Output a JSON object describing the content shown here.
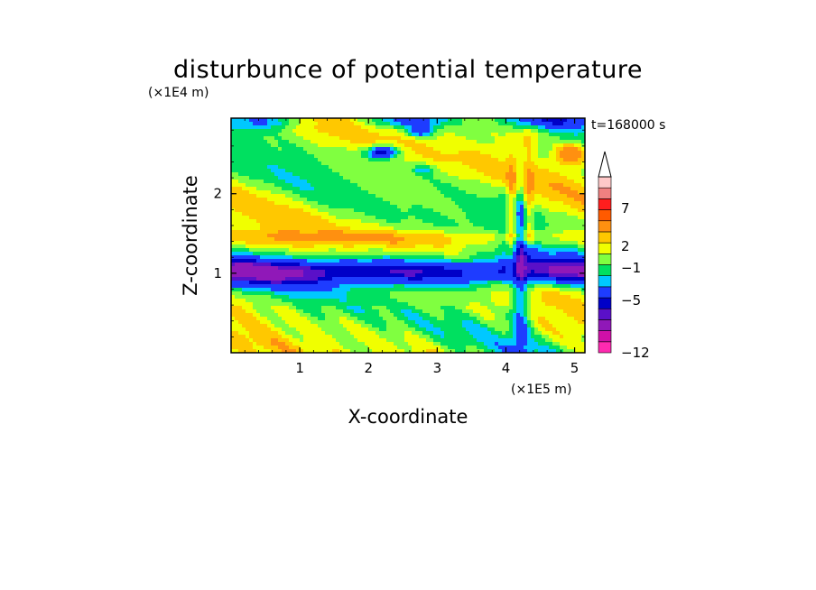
{
  "chart_data": {
    "type": "heatmap",
    "title": "disturbunce of potential temperature",
    "xlabel": "X-coordinate",
    "ylabel": "Z-coordinate",
    "x_unit": "(×1E5 m)",
    "y_unit": "(×1E4 m)",
    "time_label": "t=168000 s",
    "xlim": [
      0,
      5.15
    ],
    "ylim": [
      0,
      2.95
    ],
    "x_ticks": [
      1,
      2,
      3,
      4,
      5
    ],
    "y_ticks": [
      1,
      2
    ],
    "colorbar": {
      "tick_values": [
        7,
        2,
        -1,
        -5,
        -12
      ],
      "levels": [
        -12,
        -10,
        -8,
        -6,
        -5,
        -4,
        -2,
        -1,
        0,
        1,
        2,
        3,
        5,
        7,
        9,
        11
      ],
      "colors": [
        "#ff2ab0",
        "#d010a8",
        "#9018b8",
        "#5a10c8",
        "#0000c8",
        "#1e3cff",
        "#00c8ff",
        "#00e060",
        "#80ff40",
        "#f0ff00",
        "#ffc800",
        "#ff9010",
        "#ff5a00",
        "#ff1e1e",
        "#f08080",
        "#ffc8c8"
      ]
    }
  }
}
